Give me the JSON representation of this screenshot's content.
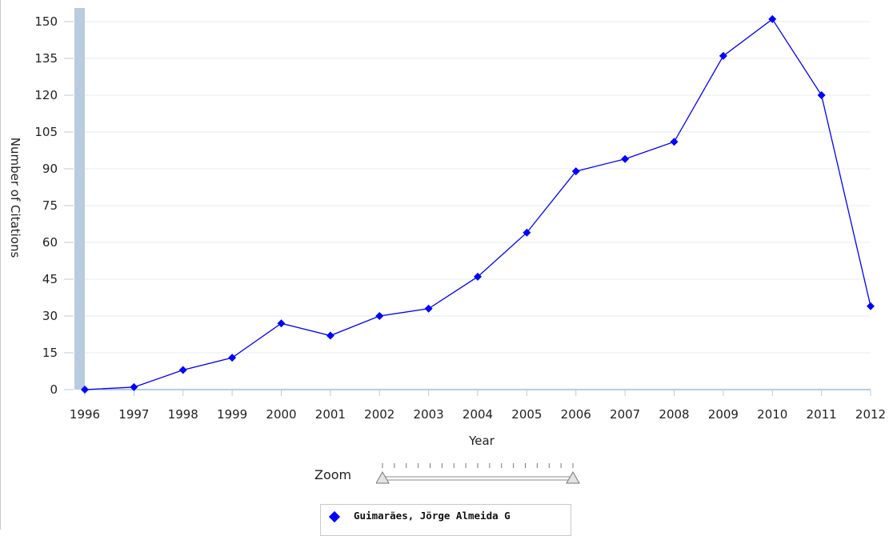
{
  "chart_data": {
    "type": "line",
    "xlabel": "Year",
    "ylabel": "Number of Citations",
    "ylim": [
      0,
      150
    ],
    "yticks": [
      0,
      15,
      30,
      45,
      60,
      75,
      90,
      105,
      120,
      135,
      150
    ],
    "categories": [
      "1996",
      "1997",
      "1998",
      "1999",
      "2000",
      "2001",
      "2002",
      "2003",
      "2004",
      "2005",
      "2006",
      "2007",
      "2008",
      "2009",
      "2010",
      "2011",
      "2012"
    ],
    "series": [
      {
        "name": "Guimarães, Jörge Almeida G",
        "values": [
          0,
          1,
          8,
          13,
          27,
          22,
          30,
          33,
          46,
          64,
          89,
          94,
          101,
          136,
          151,
          120,
          34
        ]
      }
    ],
    "grid": true,
    "colors": {
      "series": "#0000ff",
      "grid": "#e6ecf2",
      "axis_band": "#b9cbde",
      "axis_line": "#b9cbde"
    }
  },
  "zoom": {
    "label": "Zoom"
  },
  "legend": {
    "entries": [
      "Guimarães, Jörge Almeida G"
    ]
  }
}
